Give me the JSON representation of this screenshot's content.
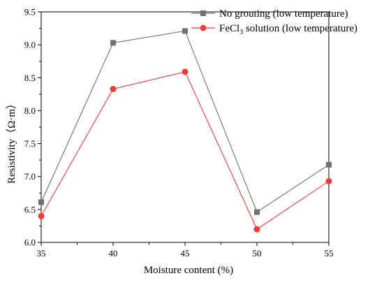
{
  "chart_data": {
    "type": "line",
    "x": [
      35,
      40,
      45,
      50,
      55
    ],
    "xlabel": "Moisture content (%)",
    "ylabel": "Resistivity（Ω·m）",
    "xlim": [
      35,
      55
    ],
    "ylim": [
      6.0,
      9.5
    ],
    "xticks": [
      "35",
      "40",
      "45",
      "50",
      "55"
    ],
    "yticks": [
      "6.0",
      "6.5",
      "7.0",
      "7.5",
      "8.0",
      "8.5",
      "9.0",
      "9.5"
    ],
    "grid": false,
    "legend_position": "top-right",
    "series": [
      {
        "name": "No grouting (low temperature)",
        "values": [
          6.61,
          9.03,
          9.21,
          6.46,
          7.18
        ],
        "color": "#707070",
        "marker": "square"
      },
      {
        "name": "FeCl₃ solution (low temperature)",
        "name_parts": [
          "FeCl",
          "3",
          " solution (low temperature)"
        ],
        "values": [
          6.4,
          8.33,
          8.59,
          6.2,
          6.93
        ],
        "color": "#f03c3c",
        "marker": "circle"
      }
    ]
  }
}
